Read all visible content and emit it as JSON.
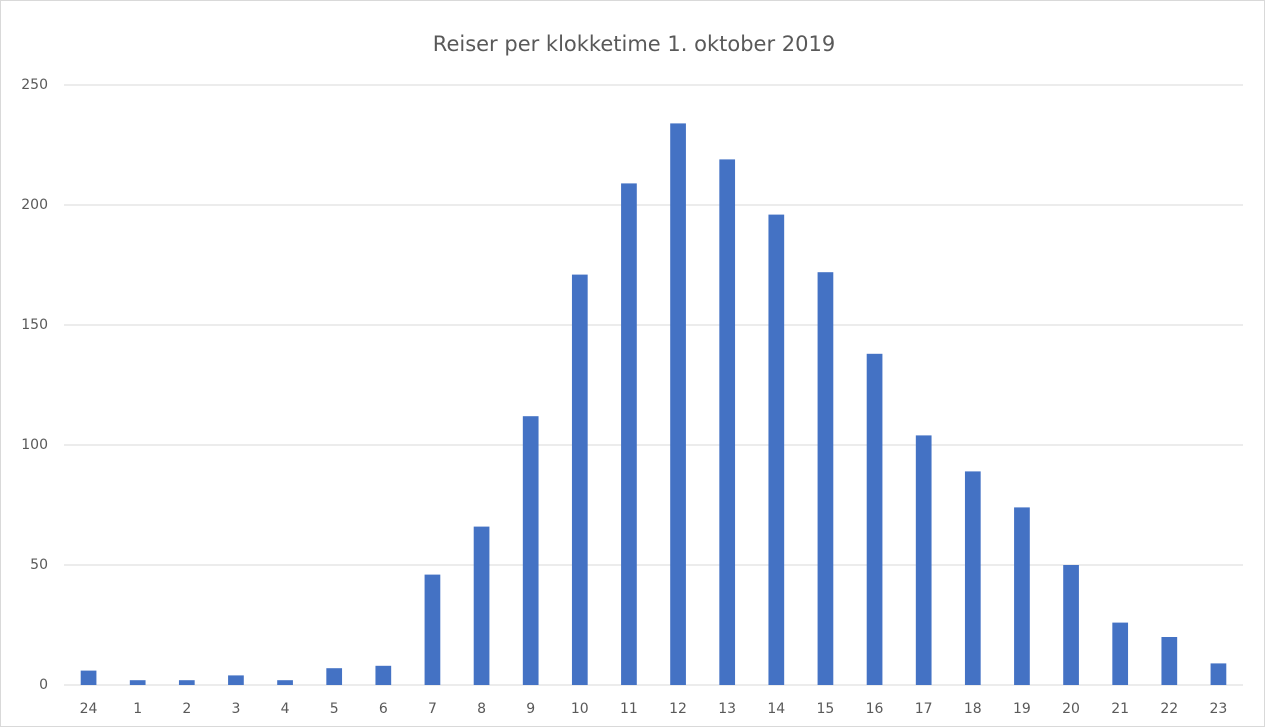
{
  "chart_data": {
    "type": "bar",
    "title": "Reiser per klokketime 1. oktober 2019",
    "categories": [
      "24",
      "1",
      "2",
      "3",
      "4",
      "5",
      "6",
      "7",
      "8",
      "9",
      "10",
      "11",
      "12",
      "13",
      "14",
      "15",
      "16",
      "17",
      "18",
      "19",
      "20",
      "21",
      "22",
      "23"
    ],
    "values": [
      6,
      2,
      2,
      4,
      2,
      7,
      8,
      46,
      66,
      112,
      171,
      209,
      234,
      219,
      196,
      172,
      138,
      104,
      89,
      74,
      50,
      26,
      20,
      9
    ],
    "color": "#4472c4",
    "ylim": [
      0,
      250
    ],
    "yticks": [
      0,
      50,
      100,
      150,
      200,
      250
    ],
    "grid": true
  }
}
